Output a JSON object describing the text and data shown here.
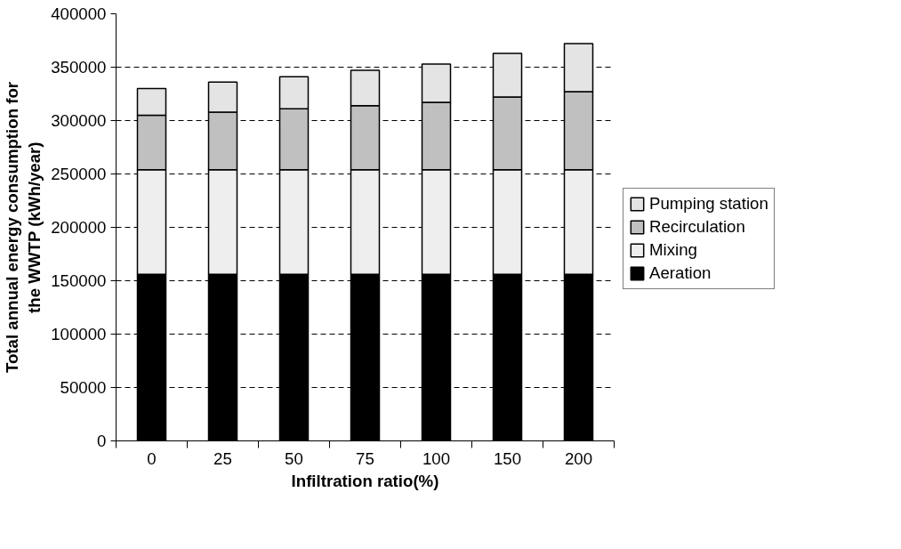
{
  "chart_data": {
    "type": "bar",
    "stacked": true,
    "xlabel": "Infiltration ratio(%)",
    "ylabel": "Total annual energy consumption for\nthe WWTP (kWh/year)",
    "categories": [
      "0",
      "25",
      "50",
      "75",
      "100",
      "150",
      "200"
    ],
    "series": [
      {
        "name": "Aeration",
        "color": "#000000",
        "values": [
          156000,
          156000,
          156000,
          156000,
          156000,
          156000,
          156000
        ]
      },
      {
        "name": "Mixing",
        "color": "#eeeeee",
        "values": [
          98000,
          98000,
          98000,
          98000,
          98000,
          98000,
          98000
        ]
      },
      {
        "name": "Recirculation",
        "color": "#c0c0c0",
        "values": [
          51000,
          54000,
          57000,
          60000,
          63000,
          68000,
          73000
        ]
      },
      {
        "name": "Pumping station",
        "color": "#e4e4e4",
        "values": [
          25000,
          28000,
          30000,
          33000,
          36000,
          41000,
          45000
        ]
      }
    ],
    "ylim": [
      0,
      400000
    ],
    "yticks": [
      0,
      50000,
      100000,
      150000,
      200000,
      250000,
      300000,
      350000,
      400000
    ],
    "grid": "y",
    "legend": "right"
  }
}
